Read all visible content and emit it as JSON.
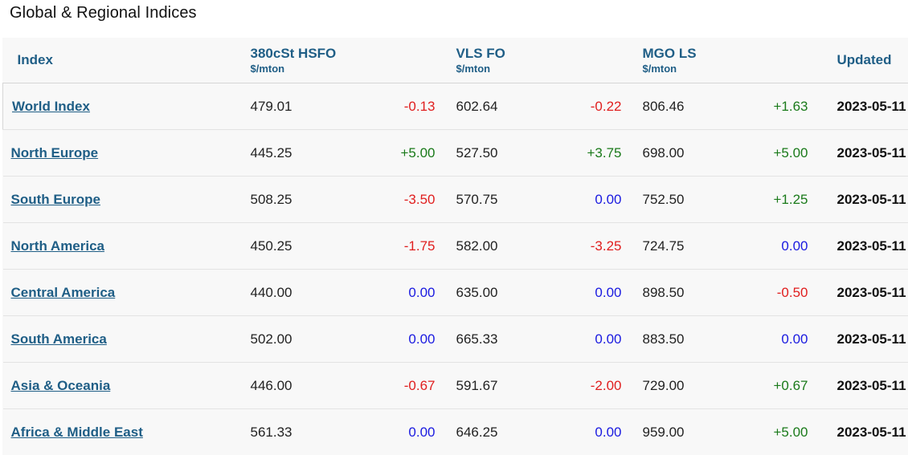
{
  "title": "Global & Regional Indices",
  "headers": {
    "index": "Index",
    "hsfo": "380cSt HSFO",
    "hsfo_unit": "$/mton",
    "vlsfo": "VLS FO",
    "vlsfo_unit": "$/mton",
    "mgo": "MGO LS",
    "mgo_unit": "$/mton",
    "updated": "Updated"
  },
  "rows": [
    {
      "name": "World Index",
      "hsfo": "479.01",
      "hsfo_chg": "-0.13",
      "vlsfo": "602.64",
      "vlsfo_chg": "-0.22",
      "mgo": "806.46",
      "mgo_chg": "+1.63",
      "updated": "2023-05-11"
    },
    {
      "name": "North Europe",
      "hsfo": "445.25",
      "hsfo_chg": "+5.00",
      "vlsfo": "527.50",
      "vlsfo_chg": "+3.75",
      "mgo": "698.00",
      "mgo_chg": "+5.00",
      "updated": "2023-05-11"
    },
    {
      "name": "South Europe",
      "hsfo": "508.25",
      "hsfo_chg": "-3.50",
      "vlsfo": "570.75",
      "vlsfo_chg": "0.00",
      "mgo": "752.50",
      "mgo_chg": "+1.25",
      "updated": "2023-05-11"
    },
    {
      "name": "North America",
      "hsfo": "450.25",
      "hsfo_chg": "-1.75",
      "vlsfo": "582.00",
      "vlsfo_chg": "-3.25",
      "mgo": "724.75",
      "mgo_chg": "0.00",
      "updated": "2023-05-11"
    },
    {
      "name": "Central America",
      "hsfo": "440.00",
      "hsfo_chg": "0.00",
      "vlsfo": "635.00",
      "vlsfo_chg": "0.00",
      "mgo": "898.50",
      "mgo_chg": "-0.50",
      "updated": "2023-05-11"
    },
    {
      "name": "South America",
      "hsfo": "502.00",
      "hsfo_chg": "0.00",
      "vlsfo": "665.33",
      "vlsfo_chg": "0.00",
      "mgo": "883.50",
      "mgo_chg": "0.00",
      "updated": "2023-05-11"
    },
    {
      "name": "Asia & Oceania",
      "hsfo": "446.00",
      "hsfo_chg": "-0.67",
      "vlsfo": "591.67",
      "vlsfo_chg": "-2.00",
      "mgo": "729.00",
      "mgo_chg": "+0.67",
      "updated": "2023-05-11"
    },
    {
      "name": "Africa & Middle East",
      "hsfo": "561.33",
      "hsfo_chg": "0.00",
      "vlsfo": "646.25",
      "vlsfo_chg": "0.00",
      "mgo": "959.00",
      "mgo_chg": "+5.00",
      "updated": "2023-05-11"
    }
  ],
  "colors": {
    "header_blue": "#1f5e86",
    "negative": "#e01e1e",
    "positive": "#1a7a1a",
    "zero": "#1a1ae0"
  }
}
